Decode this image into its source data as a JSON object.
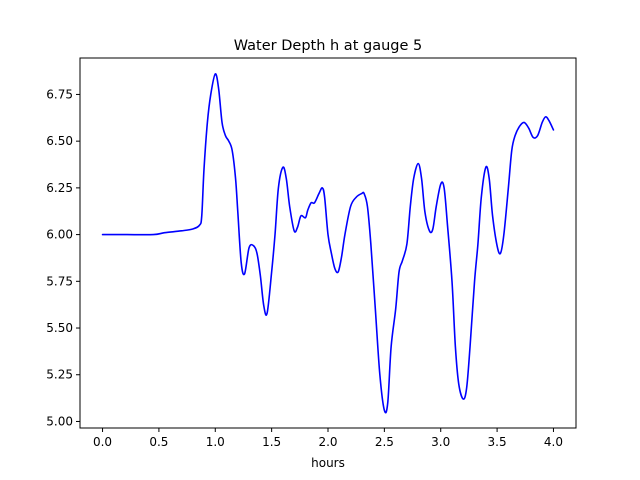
{
  "chart_data": {
    "type": "line",
    "title": "Water Depth h at gauge 5",
    "xlabel": "hours",
    "ylabel": "",
    "xlim": [
      -0.2,
      4.2
    ],
    "ylim": [
      4.965,
      6.945
    ],
    "x_ticks": [
      0.0,
      0.5,
      1.0,
      1.5,
      2.0,
      2.5,
      3.0,
      3.5,
      4.0
    ],
    "x_tick_labels": [
      "0.0",
      "0.5",
      "1.0",
      "1.5",
      "2.0",
      "2.5",
      "3.0",
      "3.5",
      "4.0"
    ],
    "y_ticks": [
      5.0,
      5.25,
      5.5,
      5.75,
      6.0,
      6.25,
      6.5,
      6.75
    ],
    "y_tick_labels": [
      "5.00",
      "5.25",
      "5.50",
      "5.75",
      "6.00",
      "6.25",
      "6.50",
      "6.75"
    ],
    "grid": false,
    "line_color": "#0000ff",
    "series": [
      {
        "x": [
          0.0,
          0.2,
          0.45,
          0.55,
          0.7,
          0.8,
          0.86,
          0.88,
          0.9,
          0.93,
          0.96,
          1.0,
          1.03,
          1.06,
          1.09,
          1.12,
          1.15,
          1.18,
          1.2,
          1.23,
          1.26,
          1.3,
          1.34,
          1.37,
          1.4,
          1.43,
          1.46,
          1.5,
          1.53,
          1.56,
          1.6,
          1.63,
          1.66,
          1.7,
          1.73,
          1.76,
          1.8,
          1.82,
          1.85,
          1.88,
          1.92,
          1.95,
          1.97,
          2.0,
          2.03,
          2.06,
          2.09,
          2.12,
          2.15,
          2.2,
          2.25,
          2.3,
          2.32,
          2.35,
          2.38,
          2.42,
          2.46,
          2.5,
          2.53,
          2.56,
          2.6,
          2.63,
          2.66,
          2.7,
          2.73,
          2.76,
          2.8,
          2.83,
          2.86,
          2.9,
          2.93,
          2.96,
          3.0,
          3.03,
          3.06,
          3.1,
          3.13,
          3.16,
          3.2,
          3.23,
          3.26,
          3.3,
          3.33,
          3.36,
          3.4,
          3.43,
          3.46,
          3.5,
          3.53,
          3.56,
          3.6,
          3.63,
          3.66,
          3.7,
          3.74,
          3.78,
          3.82,
          3.86,
          3.9,
          3.93,
          3.96,
          4.0
        ],
        "y": [
          6.0,
          6.0,
          6.0,
          6.01,
          6.02,
          6.03,
          6.05,
          6.1,
          6.35,
          6.6,
          6.75,
          6.86,
          6.78,
          6.6,
          6.53,
          6.5,
          6.45,
          6.3,
          6.12,
          5.85,
          5.79,
          5.93,
          5.94,
          5.9,
          5.78,
          5.62,
          5.58,
          5.8,
          6.0,
          6.25,
          6.36,
          6.3,
          6.15,
          6.02,
          6.04,
          6.1,
          6.09,
          6.13,
          6.17,
          6.17,
          6.22,
          6.25,
          6.2,
          6.0,
          5.9,
          5.82,
          5.8,
          5.88,
          6.0,
          6.15,
          6.2,
          6.22,
          6.22,
          6.15,
          5.95,
          5.6,
          5.25,
          5.06,
          5.1,
          5.4,
          5.6,
          5.8,
          5.86,
          5.95,
          6.15,
          6.3,
          6.38,
          6.3,
          6.12,
          6.02,
          6.03,
          6.15,
          6.27,
          6.25,
          6.05,
          5.75,
          5.4,
          5.2,
          5.12,
          5.18,
          5.4,
          5.75,
          5.95,
          6.2,
          6.36,
          6.3,
          6.1,
          5.94,
          5.9,
          6.0,
          6.25,
          6.45,
          6.53,
          6.58,
          6.6,
          6.57,
          6.52,
          6.53,
          6.6,
          6.63,
          6.61,
          6.56
        ]
      }
    ]
  }
}
